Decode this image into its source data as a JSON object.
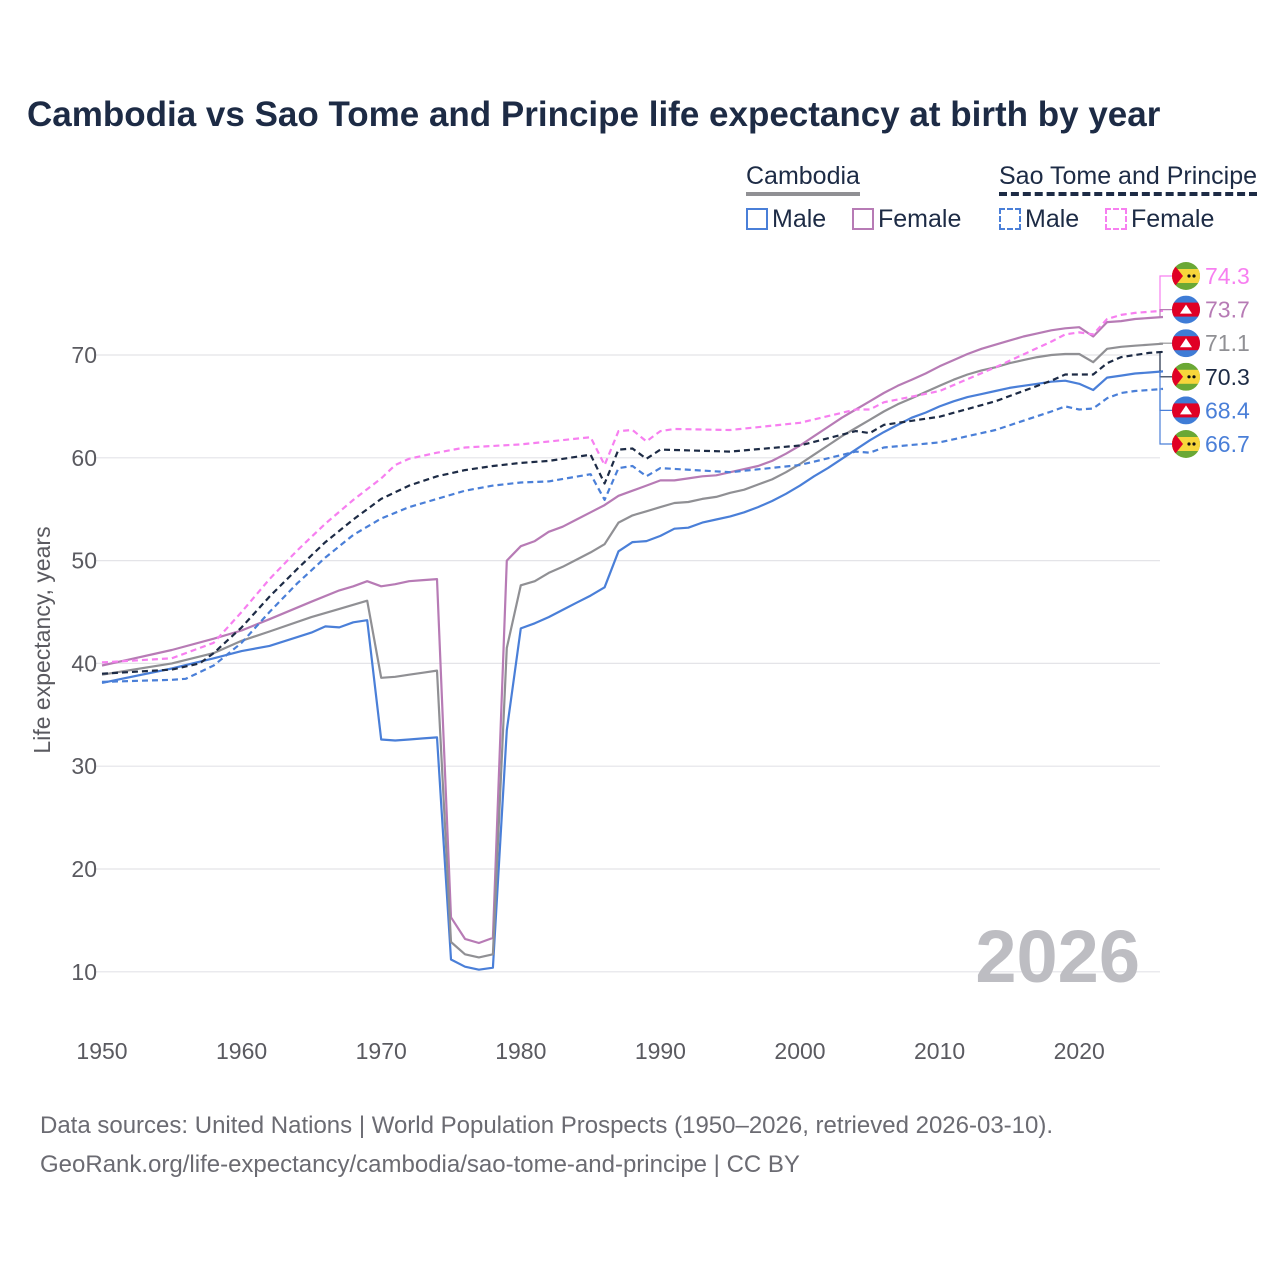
{
  "title": "Cambodia vs Sao Tome and Principe life expectancy at birth by year",
  "legend": {
    "group1": "Cambodia",
    "group2": "Sao Tome and Principe",
    "male": "Male",
    "female": "Female"
  },
  "footer": {
    "line1": "Data sources: United Nations | World Population Prospects (1950–2026, retrieved 2026-03-10).",
    "line2": "GeoRank.org/life-expectancy/cambodia/sao-tome-and-principe | CC BY"
  },
  "watermark_year": "2026",
  "chart_data": {
    "type": "line",
    "title": "Cambodia vs Sao Tome and Principe life expectancy at birth by year",
    "xlabel": "",
    "ylabel": "Life expectancy, years",
    "xlim": [
      1950,
      2026
    ],
    "ylim": [
      5,
      78
    ],
    "xticks": [
      "1950",
      "1960",
      "1970",
      "1980",
      "1990",
      "2000",
      "2010",
      "2020"
    ],
    "yticks": [
      "10",
      "20",
      "30",
      "40",
      "50",
      "60",
      "70"
    ],
    "grid": true,
    "legend_position": "top-right",
    "series": [
      {
        "name": "Cambodia Male",
        "country": "Cambodia",
        "color": "#4a7fd8",
        "dash": false,
        "end_label": "68.4",
        "x": [
          1950,
          1955,
          1958,
          1960,
          1962,
          1965,
          1966,
          1967,
          1968,
          1969,
          1970,
          1971,
          1972,
          1973,
          1974,
          1975,
          1976,
          1977,
          1978,
          1979,
          1980,
          1981,
          1982,
          1983,
          1984,
          1985,
          1986,
          1987,
          1988,
          1989,
          1990,
          1991,
          1992,
          1993,
          1994,
          1995,
          1996,
          1997,
          1998,
          1999,
          2000,
          2001,
          2002,
          2003,
          2004,
          2005,
          2006,
          2007,
          2008,
          2009,
          2010,
          2011,
          2012,
          2013,
          2014,
          2015,
          2016,
          2017,
          2018,
          2019,
          2020,
          2021,
          2022,
          2023,
          2024,
          2025,
          2026
        ],
        "y": [
          38.1,
          39.5,
          40.5,
          41.2,
          41.7,
          43.0,
          43.6,
          43.5,
          44.0,
          44.2,
          32.6,
          32.5,
          32.6,
          32.7,
          32.8,
          11.2,
          10.5,
          10.2,
          10.4,
          33.5,
          43.4,
          43.9,
          44.5,
          45.2,
          45.9,
          46.6,
          47.4,
          50.9,
          51.8,
          51.9,
          52.4,
          53.1,
          53.2,
          53.7,
          54.0,
          54.3,
          54.7,
          55.2,
          55.8,
          56.5,
          57.3,
          58.2,
          59.0,
          59.9,
          60.8,
          61.7,
          62.5,
          63.2,
          63.9,
          64.4,
          65.0,
          65.5,
          65.9,
          66.2,
          66.5,
          66.8,
          67.0,
          67.2,
          67.4,
          67.5,
          67.2,
          66.6,
          67.8,
          68.0,
          68.2,
          68.3,
          68.4
        ]
      },
      {
        "name": "Cambodia Female",
        "country": "Cambodia",
        "color": "#b77bb5",
        "dash": false,
        "end_label": "73.7",
        "x": [
          1950,
          1955,
          1958,
          1960,
          1962,
          1965,
          1967,
          1968,
          1969,
          1970,
          1971,
          1972,
          1973,
          1974,
          1975,
          1976,
          1977,
          1978,
          1979,
          1980,
          1981,
          1982,
          1983,
          1984,
          1985,
          1986,
          1987,
          1988,
          1989,
          1990,
          1991,
          1992,
          1993,
          1994,
          1995,
          1996,
          1997,
          1998,
          1999,
          2000,
          2001,
          2002,
          2003,
          2004,
          2005,
          2006,
          2007,
          2008,
          2009,
          2010,
          2011,
          2012,
          2013,
          2014,
          2015,
          2016,
          2017,
          2018,
          2019,
          2020,
          2021,
          2022,
          2023,
          2024,
          2025,
          2026
        ],
        "y": [
          39.8,
          41.3,
          42.4,
          43.2,
          44.3,
          46.0,
          47.1,
          47.5,
          48.0,
          47.5,
          47.7,
          48.0,
          48.1,
          48.2,
          15.3,
          13.2,
          12.8,
          13.3,
          50.0,
          51.4,
          51.9,
          52.8,
          53.3,
          54.0,
          54.7,
          55.4,
          56.3,
          56.8,
          57.3,
          57.8,
          57.8,
          58.0,
          58.2,
          58.3,
          58.6,
          58.9,
          59.2,
          59.7,
          60.4,
          61.2,
          62.1,
          63.0,
          63.9,
          64.7,
          65.5,
          66.3,
          67.0,
          67.6,
          68.2,
          68.9,
          69.5,
          70.1,
          70.6,
          71.0,
          71.4,
          71.8,
          72.1,
          72.4,
          72.6,
          72.7,
          71.8,
          73.2,
          73.3,
          73.5,
          73.6,
          73.7
        ]
      },
      {
        "name": "Cambodia",
        "country": "Cambodia",
        "color": "#909094",
        "dash": false,
        "end_label": "71.1",
        "x": [
          1950,
          1955,
          1958,
          1960,
          1962,
          1965,
          1967,
          1969,
          1970,
          1971,
          1972,
          1973,
          1974,
          1975,
          1976,
          1977,
          1978,
          1979,
          1980,
          1981,
          1982,
          1983,
          1984,
          1985,
          1986,
          1987,
          1988,
          1989,
          1990,
          1991,
          1992,
          1993,
          1994,
          1995,
          1996,
          1997,
          1998,
          1999,
          2000,
          2001,
          2002,
          2003,
          2004,
          2005,
          2006,
          2007,
          2008,
          2009,
          2010,
          2011,
          2012,
          2013,
          2014,
          2015,
          2016,
          2017,
          2018,
          2019,
          2020,
          2021,
          2022,
          2023,
          2024,
          2025,
          2026
        ],
        "y": [
          38.9,
          40.0,
          41.0,
          42.2,
          43.1,
          44.5,
          45.3,
          46.1,
          38.6,
          38.7,
          38.9,
          39.1,
          39.3,
          12.9,
          11.7,
          11.4,
          11.7,
          41.5,
          47.6,
          48.0,
          48.8,
          49.4,
          50.1,
          50.8,
          51.6,
          53.7,
          54.4,
          54.8,
          55.2,
          55.6,
          55.7,
          56.0,
          56.2,
          56.6,
          56.9,
          57.4,
          57.9,
          58.6,
          59.4,
          60.3,
          61.2,
          62.1,
          62.9,
          63.7,
          64.5,
          65.2,
          65.8,
          66.4,
          67.0,
          67.6,
          68.1,
          68.5,
          68.8,
          69.2,
          69.5,
          69.8,
          70.0,
          70.1,
          70.1,
          69.3,
          70.6,
          70.8,
          70.9,
          71.0,
          71.1
        ]
      },
      {
        "name": "Sao Tome and Principe",
        "country": "Sao Tome and Principe",
        "color": "#1d2b45",
        "dash": true,
        "end_label": "70.3",
        "x": [
          1950,
          1955,
          1957,
          1958,
          1960,
          1962,
          1964,
          1966,
          1968,
          1970,
          1972,
          1974,
          1976,
          1978,
          1980,
          1982,
          1985,
          1986,
          1987,
          1988,
          1989,
          1990,
          1995,
          2000,
          2004,
          2005,
          2006,
          2010,
          2014,
          2018,
          2019,
          2020,
          2021,
          2022,
          2023,
          2024,
          2025,
          2026
        ],
        "y": [
          39.0,
          39.4,
          40.0,
          41.0,
          43.5,
          46.5,
          49.2,
          51.8,
          54.0,
          56.0,
          57.3,
          58.2,
          58.8,
          59.2,
          59.5,
          59.7,
          60.3,
          57.5,
          60.8,
          60.9,
          59.9,
          60.8,
          60.6,
          61.2,
          62.6,
          62.4,
          63.2,
          64.0,
          65.5,
          67.5,
          68.1,
          68.1,
          68.1,
          69.2,
          69.8,
          70.0,
          70.2,
          70.3
        ]
      },
      {
        "name": "Sao Tome and Principe Male",
        "country": "Sao Tome and Principe",
        "color": "#4a7fd8",
        "dash": true,
        "end_label": "66.7",
        "x": [
          1950,
          1955,
          1956,
          1958,
          1960,
          1962,
          1964,
          1966,
          1968,
          1970,
          1972,
          1974,
          1976,
          1978,
          1980,
          1982,
          1985,
          1986,
          1987,
          1988,
          1989,
          1990,
          1995,
          2000,
          2004,
          2005,
          2006,
          2010,
          2014,
          2018,
          2019,
          2020,
          2021,
          2022,
          2023,
          2024,
          2025,
          2026
        ],
        "y": [
          38.2,
          38.4,
          38.5,
          39.8,
          42.0,
          45.0,
          47.8,
          50.3,
          52.5,
          54.1,
          55.2,
          56.0,
          56.8,
          57.3,
          57.6,
          57.7,
          58.4,
          55.9,
          59.0,
          59.2,
          58.2,
          59.0,
          58.6,
          59.3,
          60.6,
          60.5,
          61.0,
          61.5,
          62.7,
          64.5,
          65.0,
          64.7,
          64.8,
          65.8,
          66.3,
          66.5,
          66.6,
          66.7
        ]
      },
      {
        "name": "Sao Tome and Principe Female",
        "country": "Sao Tome and Principe",
        "color": "#f77ff0",
        "dash": true,
        "end_label": "74.3",
        "x": [
          1950,
          1955,
          1958,
          1960,
          1962,
          1964,
          1966,
          1968,
          1970,
          1971,
          1972,
          1974,
          1976,
          1980,
          1985,
          1986,
          1987,
          1988,
          1989,
          1990,
          1991,
          1995,
          2000,
          2004,
          2005,
          2006,
          2010,
          2014,
          2018,
          2019,
          2020,
          2021,
          2022,
          2023,
          2024,
          2025,
          2026
        ],
        "y": [
          40.1,
          40.5,
          42.0,
          45.0,
          48.2,
          51.0,
          53.6,
          55.9,
          58.0,
          59.3,
          59.9,
          60.5,
          61.0,
          61.3,
          62.0,
          59.3,
          62.6,
          62.7,
          61.6,
          62.6,
          62.8,
          62.7,
          63.4,
          64.7,
          64.7,
          65.4,
          66.5,
          68.8,
          71.3,
          72.0,
          72.2,
          72.0,
          73.5,
          73.9,
          74.1,
          74.2,
          74.3
        ]
      }
    ]
  }
}
